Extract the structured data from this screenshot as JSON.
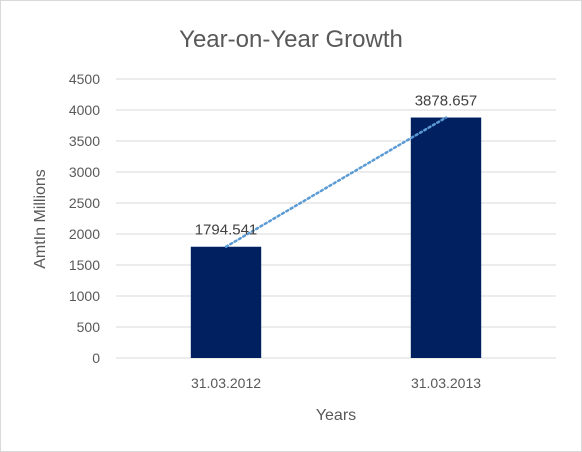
{
  "chart_data": {
    "type": "bar",
    "title": "Year-on-Year Growth",
    "xlabel": "Years",
    "ylabel": "AmtIn Millions",
    "categories": [
      "31.03.2012",
      "31.03.2013"
    ],
    "values": [
      1794.541,
      3878.657
    ],
    "data_labels": [
      "1794.541",
      "3878.657"
    ],
    "ylim": [
      0,
      4500
    ],
    "y_ticks": [
      0,
      500,
      1000,
      1500,
      2000,
      2500,
      3000,
      3500,
      4000,
      4500
    ],
    "grid": true,
    "legend": "none",
    "trendline": {
      "type": "linear",
      "style": "dotted"
    },
    "colors": {
      "bar": "#002060",
      "trendline": "#5b9bd5",
      "grid": "#d9d9d9",
      "text": "#595959"
    }
  }
}
